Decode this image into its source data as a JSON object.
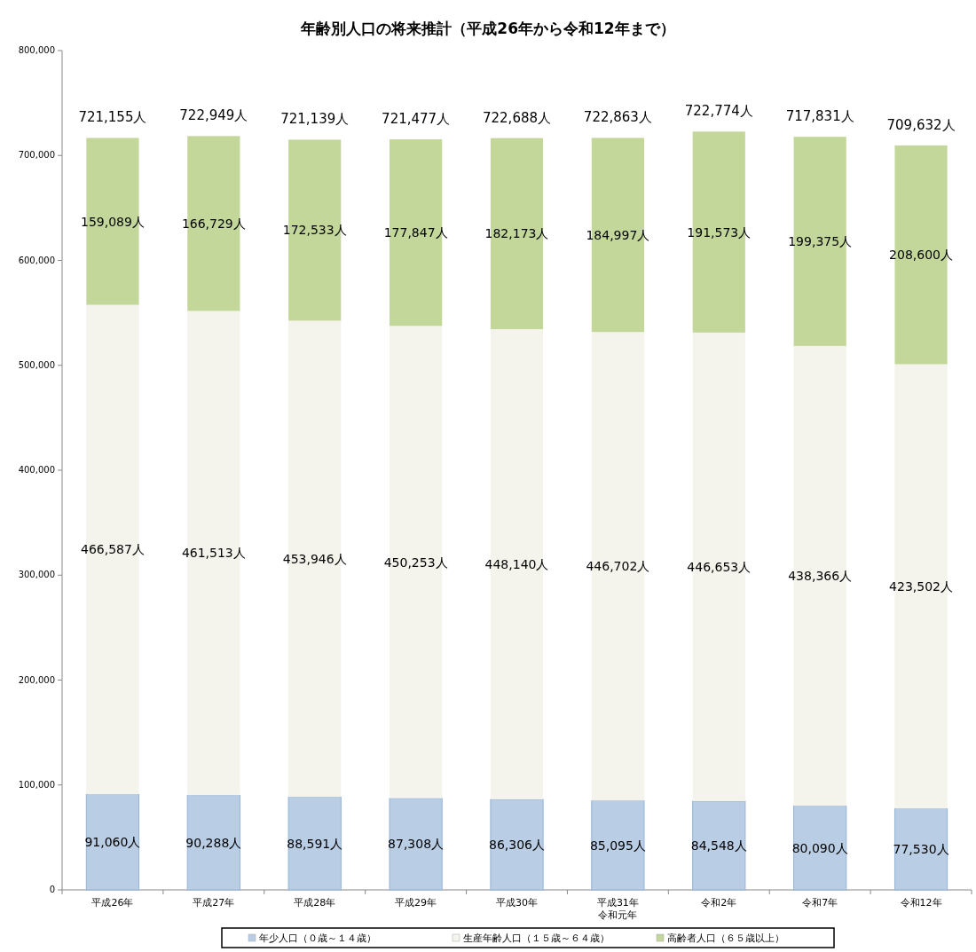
{
  "chart_data": {
    "type": "bar",
    "stacked": true,
    "title": "年齢別人口の将来推計（平成26年から令和12年まで）",
    "categories": [
      "平成26年",
      "平成27年",
      "平成28年",
      "平成29年",
      "平成30年",
      "平成31年令和元年",
      "令和2年",
      "令和7年",
      "令和12年"
    ],
    "series": [
      {
        "name": "年少人口（０歳～１４歳）",
        "color": "#b9cde5",
        "values": [
          91060,
          90288,
          88591,
          87308,
          86306,
          85095,
          84548,
          80090,
          77530
        ],
        "value_labels": [
          "91,060人",
          "90,288人",
          "88,591人",
          "87,308人",
          "86,306人",
          "85,095人",
          "84,548人",
          "80,090人",
          "77,530人"
        ]
      },
      {
        "name": "生産年齢人口（１５歳～６４歳）",
        "color": "#f4f4ec",
        "values": [
          466587,
          461513,
          453946,
          450253,
          448140,
          446702,
          446653,
          438366,
          423502
        ],
        "value_labels": [
          "466,587人",
          "461,513人",
          "453,946人",
          "450,253人",
          "448,140人",
          "446,702人",
          "446,653人",
          "438,366人",
          "423,502人"
        ]
      },
      {
        "name": "高齢者人口（６５歳以上）",
        "color": "#c4d79b",
        "values": [
          159089,
          166729,
          172533,
          177847,
          182173,
          184997,
          191573,
          199375,
          208600
        ],
        "value_labels": [
          "159,089人",
          "166,729人",
          "172,533人",
          "177,847人",
          "182,173人",
          "184,997人",
          "191,573人",
          "199,375人",
          "208,600人"
        ]
      }
    ],
    "annotations": [
      "721,155人",
      "722,949人",
      "721,139人",
      "721,477人",
      "722,688人",
      "722,863人",
      "722,774人",
      "717,831人",
      "709,632人"
    ],
    "ylim": [
      0,
      800000
    ],
    "yticks": [
      0,
      {
        "value": 100000,
        "label": "100,000"
      },
      {
        "value": 200000,
        "label": "200,000"
      },
      {
        "value": 300000,
        "label": "300,000"
      },
      {
        "value": 400000,
        "label": "400,000"
      },
      {
        "value": 500000,
        "label": "500,000"
      },
      {
        "value": 600000,
        "label": "600,000"
      },
      {
        "value": 700000,
        "label": "700,000"
      },
      {
        "value": 800000,
        "label": "800,000"
      }
    ],
    "grid": false,
    "legend": "bottom"
  }
}
